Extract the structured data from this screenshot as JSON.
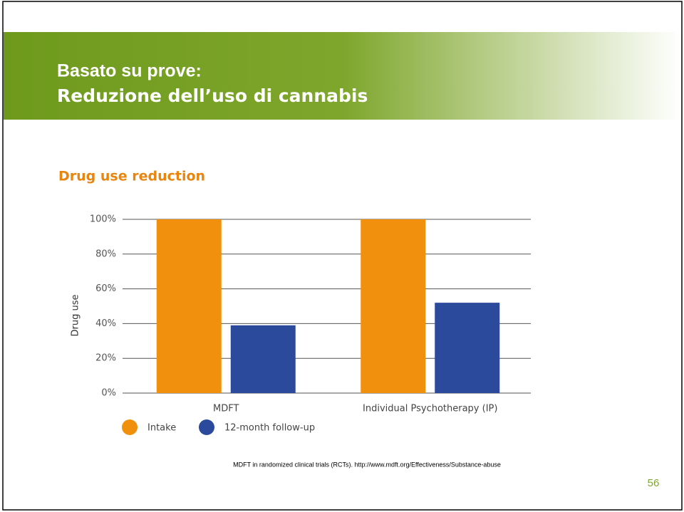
{
  "slide": {
    "title_line1": "Basato su prove:",
    "title_line2": "Reduzione dell’uso di cannabis",
    "source": "MDFT in randomized clinical trials (RCTs). http://www.mdft.org/Effectiveness/Substance-abuse",
    "page_number": "56"
  },
  "chart_data": {
    "type": "bar",
    "title": "Drug use reduction",
    "y_label": "Drug use",
    "categories": [
      "MDFT",
      "Individual Psychotherapy (IP)"
    ],
    "series": [
      {
        "name": "Intake",
        "color": "#f0900c",
        "values": [
          100,
          100
        ]
      },
      {
        "name": "12-month follow-up",
        "color": "#2b4a9b",
        "values": [
          39,
          52
        ]
      }
    ],
    "ylim": [
      0,
      100
    ],
    "yticks": [
      {
        "value": 0,
        "label": "0%"
      },
      {
        "value": 20,
        "label": "20%"
      },
      {
        "value": 40,
        "label": "40%"
      },
      {
        "value": 60,
        "label": "60%"
      },
      {
        "value": 80,
        "label": "80%"
      },
      {
        "value": 100,
        "label": "100%"
      }
    ],
    "grid": true
  }
}
